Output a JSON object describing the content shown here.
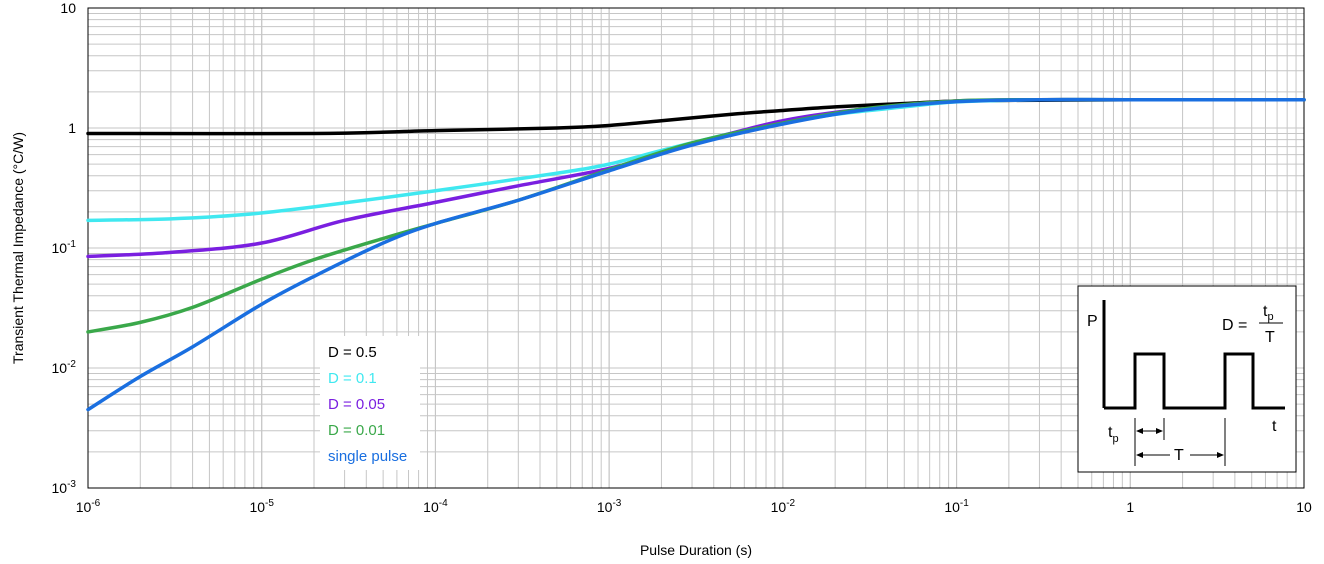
{
  "chart_data": {
    "type": "line",
    "title": "",
    "xlabel": "Pulse Duration (s)",
    "ylabel": "Transient Thermal Impedance (°C/W)",
    "x_scale": "log",
    "y_scale": "log",
    "xlim": [
      1e-06,
      10
    ],
    "ylim": [
      0.001,
      10
    ],
    "grid": true,
    "x_ticks": [
      {
        "base": "10",
        "exp": "-6"
      },
      {
        "base": "10",
        "exp": "-5"
      },
      {
        "base": "10",
        "exp": "-4"
      },
      {
        "base": "10",
        "exp": "-3"
      },
      {
        "base": "10",
        "exp": "-2"
      },
      {
        "base": "10",
        "exp": "-1"
      },
      {
        "base": "1",
        "exp": ""
      },
      {
        "base": "10",
        "exp": ""
      }
    ],
    "y_ticks": [
      {
        "base": "10",
        "exp": "-3"
      },
      {
        "base": "10",
        "exp": "-2"
      },
      {
        "base": "10",
        "exp": "-1"
      },
      {
        "base": "1",
        "exp": ""
      },
      {
        "base": "10",
        "exp": ""
      }
    ],
    "legend_position": "lower-left",
    "series": [
      {
        "name": "D = 0.5",
        "color": "#000000",
        "x": [
          1e-06,
          2e-05,
          0.0001,
          0.0005,
          0.001,
          0.002,
          0.005,
          0.01,
          0.02,
          0.05,
          0.1,
          0.2,
          1,
          10
        ],
        "y": [
          0.9,
          0.9,
          0.95,
          1.0,
          1.05,
          1.15,
          1.3,
          1.4,
          1.5,
          1.6,
          1.68,
          1.7,
          1.72,
          1.72
        ]
      },
      {
        "name": "D = 0.1",
        "color": "#40e8f0",
        "x": [
          1e-06,
          3e-06,
          8e-06,
          2e-05,
          0.0001,
          0.0005,
          0.001,
          0.002,
          0.005,
          0.01,
          0.02,
          0.05,
          0.1,
          0.3,
          1,
          10
        ],
        "y": [
          0.17,
          0.175,
          0.19,
          0.22,
          0.3,
          0.42,
          0.5,
          0.65,
          0.9,
          1.1,
          1.3,
          1.5,
          1.65,
          1.72,
          1.72,
          1.72
        ]
      },
      {
        "name": "D = 0.05",
        "color": "#7a1fe0",
        "x": [
          1e-06,
          3e-06,
          1e-05,
          3e-05,
          0.0001,
          0.0003,
          0.001,
          0.002,
          0.005,
          0.01,
          0.02,
          0.05,
          0.1,
          0.3,
          1,
          10
        ],
        "y": [
          0.085,
          0.092,
          0.11,
          0.17,
          0.24,
          0.33,
          0.46,
          0.62,
          0.9,
          1.15,
          1.35,
          1.55,
          1.68,
          1.72,
          1.72,
          1.72
        ]
      },
      {
        "name": "D = 0.01",
        "color": "#3aa84a",
        "x": [
          1e-06,
          2e-06,
          4e-06,
          1e-05,
          2e-05,
          5e-05,
          0.0001,
          0.0003,
          0.001,
          0.003,
          0.01,
          0.03,
          0.1,
          0.3,
          1,
          10
        ],
        "y": [
          0.02,
          0.024,
          0.032,
          0.055,
          0.08,
          0.12,
          0.16,
          0.25,
          0.45,
          0.75,
          1.1,
          1.45,
          1.68,
          1.72,
          1.72,
          1.72
        ]
      },
      {
        "name": "single pulse",
        "color": "#1a6fe0",
        "x": [
          1e-06,
          2e-06,
          4e-06,
          1e-05,
          2e-05,
          5e-05,
          0.0001,
          0.0003,
          0.001,
          0.003,
          0.01,
          0.03,
          0.1,
          0.3,
          1,
          10
        ],
        "y": [
          0.0045,
          0.0085,
          0.015,
          0.034,
          0.058,
          0.11,
          0.16,
          0.25,
          0.44,
          0.72,
          1.08,
          1.42,
          1.66,
          1.72,
          1.72,
          1.72
        ]
      }
    ],
    "inset": {
      "p_label": "P",
      "t_label": "t",
      "formula_lhs": "D =",
      "formula_num": "t",
      "formula_num_sub": "p",
      "formula_den": "T",
      "tp_label": "t",
      "tp_sub": "p",
      "period_label": "T"
    }
  }
}
